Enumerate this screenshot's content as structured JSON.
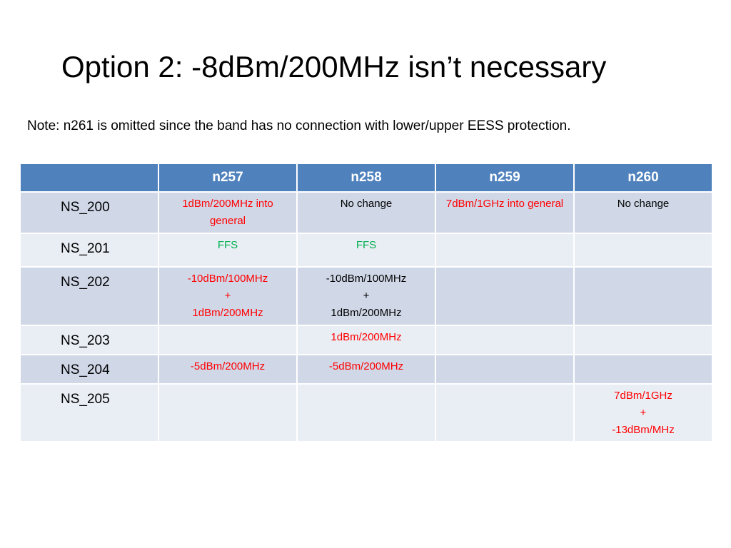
{
  "title": "Option 2: -8dBm/200MHz isn’t necessary",
  "note": "Note: n261 is omitted since the band has no connection with lower/upper EESS protection.",
  "table": {
    "header": [
      null,
      "n257",
      "n258",
      "n259",
      "n260"
    ],
    "rows": [
      {
        "label": "NS_200",
        "cells": [
          {
            "text": "1dBm/200MHz into general",
            "color": "#ff0000"
          },
          {
            "text": "No change",
            "color": "#000000"
          },
          {
            "text": "7dBm/1GHz into general",
            "color": "#ff0000"
          },
          {
            "text": "No change",
            "color": "#000000"
          }
        ]
      },
      {
        "label": "NS_201",
        "cells": [
          {
            "text": "FFS",
            "color": "#00b050"
          },
          {
            "text": "FFS",
            "color": "#00b050"
          },
          null,
          null
        ]
      },
      {
        "label": "NS_202",
        "cells": [
          {
            "text": "-10dBm/100MHz\n+\n1dBm/200MHz",
            "color": "#ff0000"
          },
          {
            "text": "-10dBm/100MHz\n+\n1dBm/200MHz",
            "color": "#000000"
          },
          null,
          null
        ]
      },
      {
        "label": "NS_203",
        "cells": [
          null,
          {
            "text": "1dBm/200MHz",
            "color": "#ff0000"
          },
          null,
          null
        ]
      },
      {
        "label": "NS_204",
        "cells": [
          {
            "text": "-5dBm/200MHz",
            "color": "#ff0000"
          },
          {
            "text": "-5dBm/200MHz",
            "color": "#ff0000"
          },
          null,
          null
        ]
      },
      {
        "label": "NS_205",
        "cells": [
          null,
          null,
          null,
          {
            "text": "7dBm/1GHz\n+\n-13dBm/MHz",
            "color": "#ff0000"
          }
        ]
      }
    ]
  }
}
